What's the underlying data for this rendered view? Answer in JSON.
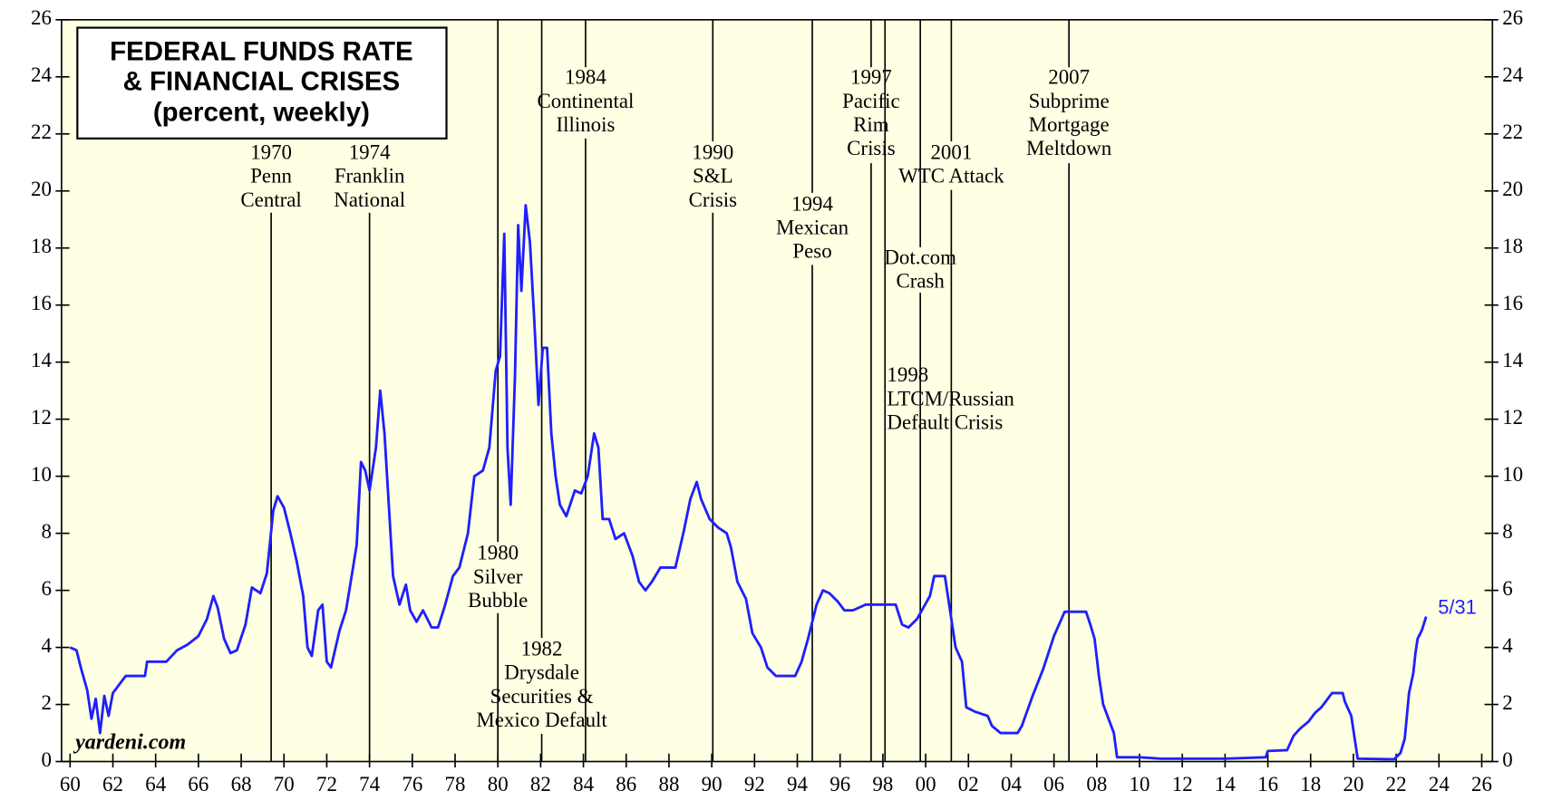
{
  "chart_data": {
    "type": "line",
    "title": [
      "FEDERAL FUNDS RATE",
      "& FINANCIAL CRISES"
    ],
    "subtitle": "(percent, weekly)",
    "watermark": "yardeni.com",
    "end_label": "5/31",
    "color": "#1f1fff",
    "xlim": [
      1959.6,
      2026.5
    ],
    "ylim": [
      0,
      26
    ],
    "yticks": [
      0,
      2,
      4,
      6,
      8,
      10,
      12,
      14,
      16,
      18,
      20,
      22,
      24,
      26
    ],
    "xticks": [
      {
        "value": 1960,
        "label": "60"
      },
      {
        "value": 1962,
        "label": "62"
      },
      {
        "value": 1964,
        "label": "64"
      },
      {
        "value": 1966,
        "label": "66"
      },
      {
        "value": 1968,
        "label": "68"
      },
      {
        "value": 1970,
        "label": "70"
      },
      {
        "value": 1972,
        "label": "72"
      },
      {
        "value": 1974,
        "label": "74"
      },
      {
        "value": 1976,
        "label": "76"
      },
      {
        "value": 1978,
        "label": "78"
      },
      {
        "value": 1980,
        "label": "80"
      },
      {
        "value": 1982,
        "label": "82"
      },
      {
        "value": 1984,
        "label": "84"
      },
      {
        "value": 1986,
        "label": "86"
      },
      {
        "value": 1988,
        "label": "88"
      },
      {
        "value": 1990,
        "label": "90"
      },
      {
        "value": 1992,
        "label": "92"
      },
      {
        "value": 1994,
        "label": "94"
      },
      {
        "value": 1996,
        "label": "96"
      },
      {
        "value": 1998,
        "label": "98"
      },
      {
        "value": 2000,
        "label": "00"
      },
      {
        "value": 2002,
        "label": "02"
      },
      {
        "value": 2004,
        "label": "04"
      },
      {
        "value": 2006,
        "label": "06"
      },
      {
        "value": 2008,
        "label": "08"
      },
      {
        "value": 2010,
        "label": "10"
      },
      {
        "value": 2012,
        "label": "12"
      },
      {
        "value": 2014,
        "label": "14"
      },
      {
        "value": 2016,
        "label": "16"
      },
      {
        "value": 2018,
        "label": "18"
      },
      {
        "value": 2020,
        "label": "20"
      },
      {
        "value": 2022,
        "label": "22"
      },
      {
        "value": 2024,
        "label": "24"
      },
      {
        "value": 2026,
        "label": "26"
      }
    ],
    "x": [
      1960.0,
      1960.3,
      1960.5,
      1960.8,
      1961.0,
      1961.2,
      1961.4,
      1961.6,
      1961.8,
      1962.0,
      1962.3,
      1962.6,
      1963.5,
      1963.6,
      1964.5,
      1965.0,
      1965.5,
      1966.0,
      1966.4,
      1966.7,
      1966.9,
      1967.2,
      1967.5,
      1967.8,
      1968.2,
      1968.5,
      1968.9,
      1969.2,
      1969.5,
      1969.7,
      1970.0,
      1970.3,
      1970.6,
      1970.9,
      1971.1,
      1971.3,
      1971.6,
      1971.8,
      1972.0,
      1972.2,
      1972.6,
      1972.9,
      1973.1,
      1973.4,
      1973.6,
      1973.8,
      1974.0,
      1974.3,
      1974.5,
      1974.7,
      1974.9,
      1975.1,
      1975.4,
      1975.7,
      1975.9,
      1976.2,
      1976.5,
      1976.9,
      1977.2,
      1977.5,
      1977.9,
      1978.2,
      1978.6,
      1978.9,
      1979.3,
      1979.6,
      1979.9,
      1980.1,
      1980.3,
      1980.45,
      1980.6,
      1980.8,
      1980.95,
      1981.1,
      1981.3,
      1981.5,
      1981.7,
      1981.9,
      1982.1,
      1982.3,
      1982.5,
      1982.7,
      1982.9,
      1983.2,
      1983.6,
      1983.9,
      1984.2,
      1984.5,
      1984.7,
      1984.9,
      1985.2,
      1985.5,
      1985.9,
      1986.3,
      1986.6,
      1986.9,
      1987.2,
      1987.6,
      1987.9,
      1988.3,
      1988.7,
      1989.0,
      1989.3,
      1989.5,
      1989.9,
      1990.3,
      1990.7,
      1990.9,
      1991.2,
      1991.6,
      1991.9,
      1992.3,
      1992.6,
      1993.0,
      1993.5,
      1993.9,
      1994.2,
      1994.5,
      1994.9,
      1995.2,
      1995.5,
      1995.9,
      1996.2,
      1996.6,
      1997.2,
      1997.6,
      1998.2,
      1998.6,
      1998.9,
      1999.2,
      1999.6,
      1999.9,
      2000.2,
      2000.4,
      2000.9,
      2001.1,
      2001.4,
      2001.7,
      2001.9,
      2002.3,
      2002.9,
      2003.1,
      2003.5,
      2004.3,
      2004.5,
      2005.0,
      2005.5,
      2006.0,
      2006.5,
      2007.5,
      2007.7,
      2007.9,
      2008.1,
      2008.3,
      2008.8,
      2008.95,
      2010.0,
      2011.0,
      2014.0,
      2015.9,
      2016.0,
      2016.9,
      2017.2,
      2017.5,
      2017.9,
      2018.2,
      2018.5,
      2018.8,
      2019.0,
      2019.5,
      2019.6,
      2019.9,
      2020.2,
      2021.9,
      2022.2,
      2022.4,
      2022.5,
      2022.6,
      2022.8,
      2022.9,
      2023.0,
      2023.2,
      2023.4
    ],
    "values": [
      4.0,
      3.9,
      3.3,
      2.5,
      1.5,
      2.2,
      1.0,
      2.3,
      1.6,
      2.4,
      2.7,
      3.0,
      3.0,
      3.5,
      3.5,
      3.9,
      4.1,
      4.4,
      5.0,
      5.8,
      5.4,
      4.3,
      3.8,
      3.9,
      4.8,
      6.1,
      5.9,
      6.6,
      8.8,
      9.3,
      8.9,
      8.0,
      7.0,
      5.8,
      4.0,
      3.7,
      5.3,
      5.5,
      3.5,
      3.3,
      4.6,
      5.3,
      6.2,
      7.6,
      10.5,
      10.2,
      9.5,
      11.0,
      13.0,
      11.5,
      9.0,
      6.5,
      5.5,
      6.2,
      5.3,
      4.9,
      5.3,
      4.7,
      4.7,
      5.4,
      6.5,
      6.8,
      8.0,
      10.0,
      10.2,
      11.0,
      13.7,
      14.2,
      18.5,
      11.0,
      9.0,
      13.5,
      18.8,
      16.5,
      19.5,
      18.2,
      15.5,
      12.5,
      14.5,
      14.5,
      11.5,
      10.0,
      9.0,
      8.6,
      9.5,
      9.4,
      10.0,
      11.5,
      11.0,
      8.5,
      8.5,
      7.8,
      8.0,
      7.2,
      6.3,
      6.0,
      6.3,
      6.8,
      6.8,
      6.8,
      8.1,
      9.2,
      9.8,
      9.2,
      8.5,
      8.2,
      8.0,
      7.5,
      6.3,
      5.7,
      4.5,
      4.0,
      3.3,
      3.0,
      3.0,
      3.0,
      3.5,
      4.3,
      5.5,
      6.0,
      5.9,
      5.6,
      5.3,
      5.3,
      5.5,
      5.5,
      5.5,
      5.5,
      4.8,
      4.7,
      5.0,
      5.4,
      5.8,
      6.5,
      6.5,
      5.5,
      4.0,
      3.5,
      1.9,
      1.75,
      1.6,
      1.25,
      1.0,
      1.0,
      1.25,
      2.3,
      3.25,
      4.4,
      5.25,
      5.25,
      4.8,
      4.3,
      3.0,
      2.0,
      1.0,
      0.15,
      0.15,
      0.1,
      0.1,
      0.15,
      0.37,
      0.4,
      0.9,
      1.15,
      1.4,
      1.7,
      1.9,
      2.2,
      2.4,
      2.4,
      2.1,
      1.6,
      0.1,
      0.08,
      0.3,
      0.8,
      1.6,
      2.4,
      3.1,
      3.8,
      4.3,
      4.6,
      5.08
    ],
    "annotations": [
      {
        "x": 1969.4,
        "lines": [
          "1970",
          "Penn",
          "Central"
        ]
      },
      {
        "x": 1974.0,
        "lines": [
          "1974",
          "Franklin",
          "National"
        ]
      },
      {
        "x": 1980.0,
        "lines": [
          "1980",
          "Silver",
          "Bubble"
        ]
      },
      {
        "x": 1982.05,
        "lines": [
          "1982",
          "Drysdale",
          "Securities &",
          "Mexico Default"
        ]
      },
      {
        "x": 1984.1,
        "lines": [
          "1984",
          "Continental",
          "Illinois"
        ]
      },
      {
        "x": 1990.05,
        "lines": [
          "1990",
          "S&L",
          "Crisis"
        ]
      },
      {
        "x": 1994.7,
        "lines": [
          "1994",
          "Mexican",
          "Peso"
        ]
      },
      {
        "x": 1997.45,
        "lines": [
          "1997",
          "Pacific",
          "Rim",
          "Crisis"
        ]
      },
      {
        "x": 1998.1,
        "lines": [
          "1998",
          "LTCM/Russian",
          "Default Crisis"
        ]
      },
      {
        "x": 1999.75,
        "lines": [
          "Dot.com",
          "Crash"
        ]
      },
      {
        "x": 2001.2,
        "lines": [
          "2001",
          "WTC Attack"
        ]
      },
      {
        "x": 2006.7,
        "lines": [
          "2007",
          "Subprime",
          "Mortgage",
          "Meltdown"
        ]
      }
    ]
  }
}
